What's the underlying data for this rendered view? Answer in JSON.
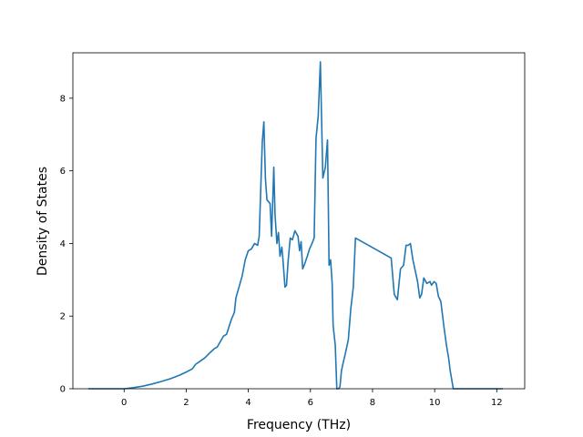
{
  "chart_data": {
    "type": "line",
    "title": "",
    "xlabel": "Frequency (THz)",
    "ylabel": "Density of States",
    "xlim": [
      -1.65,
      12.9
    ],
    "ylim": [
      0,
      9.25
    ],
    "xticks": [
      0,
      2,
      4,
      6,
      8,
      10,
      12
    ],
    "yticks": [
      0,
      2,
      4,
      6,
      8
    ],
    "grid": false,
    "legend": "none",
    "line_color": "#1f77b4",
    "series": [
      {
        "x": [
          -1.15,
          -0.5,
          0.0,
          0.3,
          0.6,
          0.9,
          1.2,
          1.5,
          1.8,
          2.0,
          2.2,
          2.3,
          2.45,
          2.6,
          2.75,
          2.9,
          3.0,
          3.1,
          3.2,
          3.3,
          3.45,
          3.55,
          3.6,
          3.7,
          3.8,
          3.9,
          4.0,
          4.1,
          4.2,
          4.3,
          4.35,
          4.45,
          4.5,
          4.55,
          4.6,
          4.7,
          4.75,
          4.82,
          4.86,
          4.92,
          4.97,
          5.02,
          5.08,
          5.12,
          5.18,
          5.23,
          5.28,
          5.35,
          5.42,
          5.5,
          5.6,
          5.65,
          5.7,
          5.75,
          5.82,
          5.9,
          5.97,
          6.05,
          6.12,
          6.18,
          6.25,
          6.32,
          6.4,
          6.48,
          6.55,
          6.6,
          6.65,
          6.7,
          6.73,
          6.8,
          6.85,
          6.9,
          6.95,
          7.0,
          7.05,
          7.12,
          7.22,
          7.3,
          7.38,
          7.45,
          8.6,
          8.7,
          8.8,
          8.9,
          9.0,
          9.08,
          9.15,
          9.22,
          9.3,
          9.45,
          9.52,
          9.58,
          9.65,
          9.75,
          9.85,
          9.9,
          9.98,
          10.05,
          10.12,
          10.2,
          10.3,
          10.38,
          10.45,
          10.5,
          10.6,
          10.7,
          10.75,
          10.85,
          10.95,
          11.05,
          11.1,
          11.3,
          12.2
        ],
        "y": [
          0,
          0,
          0,
          0.03,
          0.07,
          0.13,
          0.2,
          0.28,
          0.38,
          0.46,
          0.55,
          0.67,
          0.76,
          0.85,
          0.98,
          1.1,
          1.15,
          1.3,
          1.45,
          1.5,
          1.9,
          2.1,
          2.5,
          2.8,
          3.1,
          3.55,
          3.8,
          3.85,
          4.0,
          3.95,
          4.2,
          6.8,
          7.35,
          5.8,
          5.2,
          5.1,
          4.2,
          6.1,
          4.8,
          4.0,
          4.3,
          3.65,
          3.9,
          3.5,
          2.8,
          2.85,
          3.5,
          4.15,
          4.1,
          4.35,
          4.2,
          3.8,
          4.05,
          3.3,
          3.45,
          3.65,
          3.85,
          4.0,
          4.15,
          6.9,
          7.5,
          9.0,
          5.8,
          6.1,
          6.85,
          3.4,
          3.55,
          2.9,
          1.75,
          1.2,
          0.0,
          0.0,
          0.05,
          0.5,
          0.7,
          0.95,
          1.35,
          2.2,
          2.8,
          4.15,
          3.6,
          2.6,
          2.45,
          3.3,
          3.4,
          3.95,
          3.95,
          4.0,
          3.55,
          2.95,
          2.5,
          2.6,
          3.05,
          2.9,
          2.95,
          2.85,
          2.95,
          2.9,
          2.55,
          2.4,
          1.7,
          1.2,
          0.85,
          0.5,
          0.0,
          0.0,
          0.0,
          0.0,
          0.0,
          0.0,
          0.0,
          0.0,
          0.0
        ]
      }
    ]
  }
}
